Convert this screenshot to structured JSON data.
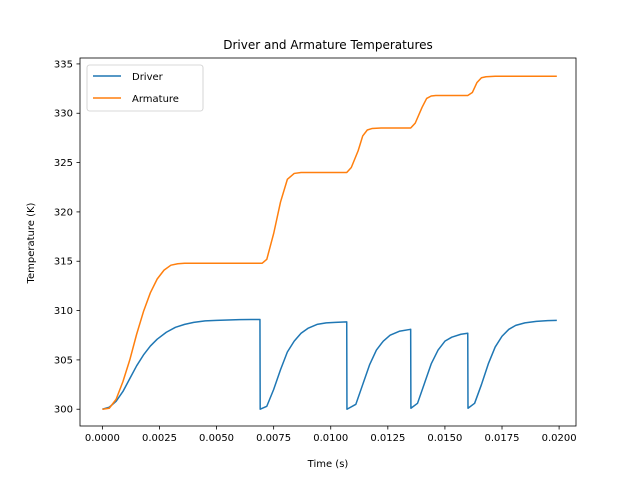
{
  "chart_data": {
    "type": "line",
    "title": "Driver and Armature Temperatures",
    "xlabel": "Time (s)",
    "ylabel": "Temperature (K)",
    "xlim": [
      -0.00098,
      0.02074
    ],
    "ylim": [
      298.3,
      335.6
    ],
    "xticks": [
      "0.0000",
      "0.0025",
      "0.0050",
      "0.0075",
      "0.0100",
      "0.0125",
      "0.0150",
      "0.0175",
      "0.0200"
    ],
    "yticks": [
      "300",
      "305",
      "310",
      "315",
      "320",
      "325",
      "330",
      "335"
    ],
    "grid": false,
    "legend": "top-left",
    "colors": {
      "driver": "#1f77b4",
      "armature": "#ff7f0e"
    },
    "series": [
      {
        "name": "Driver",
        "color": "#1f77b4",
        "x": [
          0.0,
          0.0003,
          0.0006,
          0.0009,
          0.0012,
          0.0015,
          0.0018,
          0.0021,
          0.0024,
          0.0028,
          0.0032,
          0.0036,
          0.004,
          0.0045,
          0.005,
          0.0055,
          0.006,
          0.0065,
          0.0069,
          0.00691,
          0.0072,
          0.0075,
          0.0078,
          0.0081,
          0.0084,
          0.0087,
          0.009,
          0.0094,
          0.0098,
          0.0102,
          0.0107,
          0.01071,
          0.0111,
          0.0114,
          0.0117,
          0.012,
          0.0123,
          0.0126,
          0.013,
          0.0135,
          0.01351,
          0.0138,
          0.0141,
          0.0144,
          0.0147,
          0.015,
          0.0153,
          0.0157,
          0.016,
          0.01601,
          0.0163,
          0.0166,
          0.0169,
          0.0172,
          0.0175,
          0.0178,
          0.0181,
          0.0185,
          0.019,
          0.0195,
          0.0199
        ],
        "y": [
          300.0,
          300.2,
          300.8,
          301.8,
          303.1,
          304.4,
          305.5,
          306.4,
          307.1,
          307.8,
          308.3,
          308.6,
          308.8,
          308.95,
          309.0,
          309.05,
          309.08,
          309.1,
          309.1,
          300.0,
          300.3,
          302.0,
          304.0,
          305.8,
          306.9,
          307.7,
          308.2,
          308.6,
          308.75,
          308.8,
          308.85,
          300.0,
          300.5,
          302.5,
          304.5,
          306.0,
          306.9,
          307.5,
          307.9,
          308.1,
          300.1,
          300.6,
          302.6,
          304.6,
          306.0,
          306.9,
          307.3,
          307.6,
          307.7,
          300.1,
          300.6,
          302.5,
          304.6,
          306.3,
          307.4,
          308.1,
          308.5,
          308.75,
          308.9,
          308.98,
          309.0
        ]
      },
      {
        "name": "Armature",
        "color": "#ff7f0e",
        "x": [
          0.0,
          0.0003,
          0.0006,
          0.0009,
          0.0012,
          0.0015,
          0.0018,
          0.0021,
          0.0024,
          0.0027,
          0.003,
          0.0033,
          0.0036,
          0.004,
          0.005,
          0.006,
          0.007,
          0.0072,
          0.0075,
          0.0078,
          0.0081,
          0.0084,
          0.0087,
          0.009,
          0.0095,
          0.01,
          0.0107,
          0.0109,
          0.0112,
          0.0114,
          0.0116,
          0.0118,
          0.0122,
          0.0126,
          0.013,
          0.0135,
          0.0137,
          0.014,
          0.0142,
          0.0144,
          0.0146,
          0.015,
          0.0155,
          0.016,
          0.0162,
          0.0164,
          0.0166,
          0.0168,
          0.0172,
          0.018,
          0.019,
          0.0199
        ],
        "y": [
          300.0,
          300.1,
          301.0,
          302.8,
          305.0,
          307.6,
          309.9,
          311.8,
          313.2,
          314.1,
          314.6,
          314.75,
          314.8,
          314.8,
          314.8,
          314.8,
          314.8,
          315.2,
          317.8,
          321.0,
          323.3,
          323.9,
          324.0,
          324.0,
          324.0,
          324.0,
          324.0,
          324.5,
          326.2,
          327.7,
          328.3,
          328.45,
          328.5,
          328.5,
          328.5,
          328.5,
          329.0,
          330.6,
          331.5,
          331.75,
          331.8,
          331.8,
          331.8,
          331.8,
          332.1,
          333.1,
          333.6,
          333.7,
          333.75,
          333.75,
          333.75,
          333.75
        ]
      }
    ]
  }
}
